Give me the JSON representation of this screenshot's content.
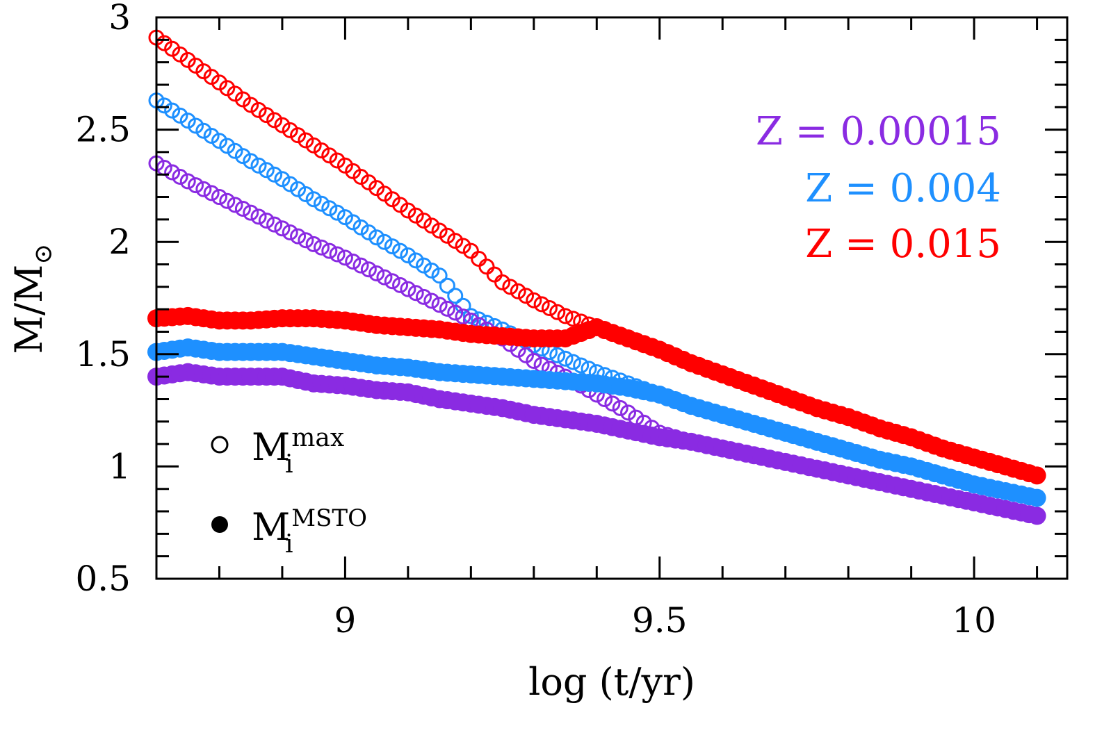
{
  "chart_data": {
    "type": "scatter",
    "title": "",
    "xlabel": "log (t/yr)",
    "ylabel": "M/M",
    "ylabel_symbol": "⊙",
    "xlim": [
      8.7,
      10.148
    ],
    "ylim": [
      0.5,
      3.0
    ],
    "x_ticks": [
      "9",
      "9.5",
      "10"
    ],
    "y_ticks": [
      "0.5",
      "1",
      "1.5",
      "2",
      "2.5",
      "3"
    ],
    "grid": false,
    "metallicity_labels": [
      {
        "text": "Z  =  0.00015",
        "color": "#8a2be2"
      },
      {
        "text": "Z  =  0.004",
        "color": "#1e90ff"
      },
      {
        "text": "Z  =  0.015",
        "color": "#ff0000"
      }
    ],
    "marker_legend": [
      {
        "marker": "open-circle",
        "base": "M",
        "sub": "i",
        "sup": "max"
      },
      {
        "marker": "filled-circle",
        "base": "M",
        "sub": "i",
        "sup": "MSTO"
      }
    ],
    "x": [
      8.7,
      8.75,
      8.8,
      8.85,
      8.9,
      8.95,
      9.0,
      9.05,
      9.1,
      9.15,
      9.2,
      9.25,
      9.3,
      9.35,
      9.4,
      9.45,
      9.5,
      9.55,
      9.6,
      9.65,
      9.7,
      9.75,
      9.8,
      9.85,
      9.9,
      9.95,
      10.0,
      10.05,
      10.1
    ],
    "series": [
      {
        "Z": "0.015",
        "kind": "max",
        "color": "#ff0000",
        "marker": "open",
        "values": [
          2.91,
          2.81,
          2.71,
          2.61,
          2.52,
          2.43,
          2.34,
          2.24,
          2.14,
          2.05,
          1.96,
          1.82,
          1.74,
          1.67,
          1.62,
          1.57,
          1.52,
          1.46,
          1.41,
          1.36,
          1.31,
          1.26,
          1.22,
          1.17,
          1.13,
          1.08,
          1.04,
          1.0,
          0.96
        ]
      },
      {
        "Z": "0.004",
        "kind": "max",
        "color": "#1e90ff",
        "marker": "open",
        "values": [
          2.63,
          2.54,
          2.45,
          2.36,
          2.28,
          2.19,
          2.11,
          2.02,
          1.94,
          1.85,
          1.67,
          1.61,
          1.54,
          1.48,
          1.42,
          1.37,
          1.32,
          1.27,
          1.23,
          1.19,
          1.15,
          1.11,
          1.07,
          1.03,
          1.0,
          0.96,
          0.92,
          0.89,
          0.86
        ]
      },
      {
        "Z": "0.00015",
        "kind": "max",
        "color": "#8a2be2",
        "marker": "open",
        "values": [
          2.35,
          2.27,
          2.2,
          2.13,
          2.06,
          1.99,
          1.93,
          1.86,
          1.79,
          1.72,
          1.65,
          1.57,
          1.47,
          1.4,
          1.32,
          1.24,
          1.15,
          1.11,
          1.08,
          1.05,
          1.02,
          0.99,
          0.96,
          0.93,
          0.9,
          0.87,
          0.84,
          0.81,
          0.78
        ]
      },
      {
        "Z": "0.00015",
        "kind": "MSTO",
        "color": "#8a2be2",
        "marker": "filled",
        "values": [
          1.4,
          1.42,
          1.4,
          1.4,
          1.4,
          1.37,
          1.36,
          1.34,
          1.33,
          1.3,
          1.28,
          1.26,
          1.23,
          1.21,
          1.19,
          1.16,
          1.13,
          1.11,
          1.08,
          1.05,
          1.02,
          0.99,
          0.96,
          0.93,
          0.9,
          0.87,
          0.84,
          0.81,
          0.78
        ]
      },
      {
        "Z": "0.004",
        "kind": "MSTO",
        "color": "#1e90ff",
        "marker": "filled",
        "values": [
          1.51,
          1.53,
          1.51,
          1.51,
          1.51,
          1.49,
          1.47,
          1.45,
          1.44,
          1.42,
          1.41,
          1.4,
          1.39,
          1.38,
          1.37,
          1.35,
          1.32,
          1.27,
          1.23,
          1.19,
          1.15,
          1.11,
          1.07,
          1.03,
          1.0,
          0.96,
          0.92,
          0.89,
          0.86
        ]
      },
      {
        "Z": "0.015",
        "kind": "MSTO",
        "color": "#ff0000",
        "marker": "filled",
        "values": [
          1.66,
          1.67,
          1.65,
          1.65,
          1.66,
          1.66,
          1.65,
          1.63,
          1.62,
          1.61,
          1.59,
          1.58,
          1.57,
          1.57,
          1.62,
          1.57,
          1.52,
          1.46,
          1.41,
          1.36,
          1.31,
          1.26,
          1.22,
          1.17,
          1.13,
          1.08,
          1.04,
          1.0,
          0.96
        ]
      }
    ]
  }
}
